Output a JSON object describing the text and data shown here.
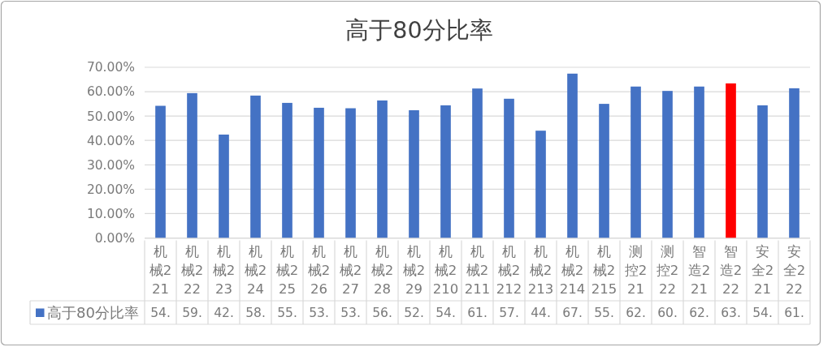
{
  "chart_data": {
    "type": "bar",
    "title": "高于80分比率",
    "categories": [
      "机械221",
      "机械222",
      "机械223",
      "机械224",
      "机械225",
      "机械226",
      "机械227",
      "机械228",
      "机械229",
      "机械2210",
      "机械2211",
      "机械2212",
      "机械2213",
      "机械2214",
      "机械2215",
      "测控221",
      "测控222",
      "智造221",
      "智造222",
      "安全221",
      "安全222"
    ],
    "series": [
      {
        "name": "高于80分比率",
        "color": "#4472c4",
        "colors": [
          "#4472c4",
          "#4472c4",
          "#4472c4",
          "#4472c4",
          "#4472c4",
          "#4472c4",
          "#4472c4",
          "#4472c4",
          "#4472c4",
          "#4472c4",
          "#4472c4",
          "#4472c4",
          "#4472c4",
          "#4472c4",
          "#4472c4",
          "#4472c4",
          "#4472c4",
          "#4472c4",
          "#ff0000",
          "#4472c4",
          "#4472c4"
        ],
        "values": [
          54.2,
          59.4,
          42.4,
          58.4,
          55.4,
          53.4,
          53.2,
          56.4,
          52.4,
          54.4,
          61.3,
          57.1,
          44.0,
          67.4,
          55.0,
          62.1,
          60.3,
          62.1,
          63.4,
          54.4,
          61.4
        ],
        "value_labels": [
          "54.",
          "59.",
          "42.",
          "58.",
          "55.",
          "53.",
          "53.",
          "56.",
          "52.",
          "54.",
          "61.",
          "57.",
          "44.",
          "67.",
          "55.",
          "62.",
          "60.",
          "62.",
          "63.",
          "54.",
          "61."
        ]
      }
    ],
    "ylim": [
      0,
      70
    ],
    "yticks": [
      {
        "value": 0,
        "label": "0.00%"
      },
      {
        "value": 10,
        "label": "10.00%"
      },
      {
        "value": 20,
        "label": "20.00%"
      },
      {
        "value": 30,
        "label": "30.00%"
      },
      {
        "value": 40,
        "label": "40.00%"
      },
      {
        "value": 50,
        "label": "50.00%"
      },
      {
        "value": 60,
        "label": "60.00%"
      },
      {
        "value": 70,
        "label": "70.00%"
      }
    ],
    "grid": "y",
    "legend": "bottom left"
  }
}
